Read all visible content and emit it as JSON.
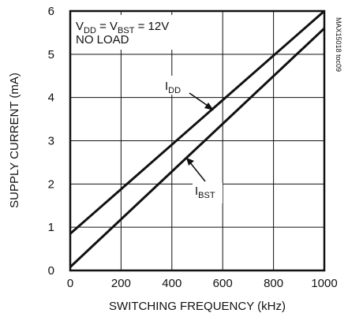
{
  "chart_data": {
    "type": "line",
    "xlabel": "SWITCHING FREQUENCY (kHz)",
    "ylabel": "SUPPLY CURRENT (mA)",
    "xlim": [
      0,
      1000
    ],
    "ylim": [
      0,
      6
    ],
    "xticks": [
      0,
      200,
      400,
      600,
      800,
      1000
    ],
    "yticks": [
      0,
      1,
      2,
      3,
      4,
      5,
      6
    ],
    "xtick_labels": [
      "0",
      "200",
      "400",
      "600",
      "800",
      "1000"
    ],
    "ytick_labels": [
      "0",
      "1",
      "2",
      "3",
      "4",
      "5",
      "6"
    ],
    "grid": true,
    "condition": {
      "v1": "V",
      "v1_sub": "DD",
      "mid": " = V",
      "v2_sub": "BST",
      "rest": " = 12V",
      "line2": "NO LOAD"
    },
    "figure_code": "MAX15018 toc09",
    "series": [
      {
        "name": "IDD",
        "label_main": "I",
        "label_sub": "DD",
        "x": [
          0,
          1000
        ],
        "y": [
          0.85,
          6.0
        ]
      },
      {
        "name": "IBST",
        "label_main": "I",
        "label_sub": "BST",
        "x": [
          0,
          1000
        ],
        "y": [
          0.08,
          5.6
        ]
      }
    ]
  }
}
